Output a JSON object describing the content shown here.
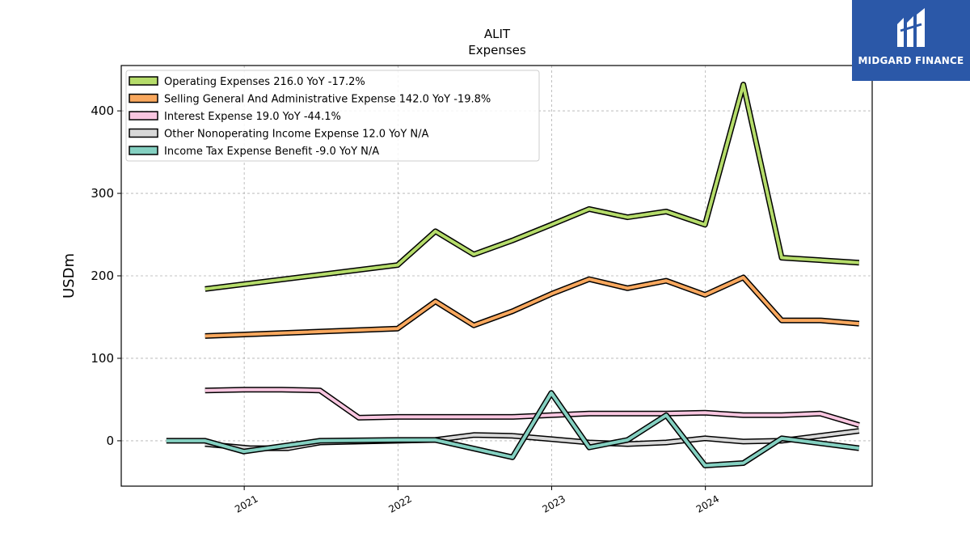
{
  "brand": {
    "name": "MIDGARD FINANCE",
    "color": "#2b58a8"
  },
  "chart_data": {
    "type": "line",
    "title": "ALIT",
    "subtitle": "Expenses",
    "ylabel": "USDm",
    "xlabel": "",
    "ylim": [
      -55,
      455
    ],
    "xlim": [
      "2020-03-15",
      "2025-01-31"
    ],
    "yticks": [
      0,
      100,
      200,
      300,
      400
    ],
    "xticks": [
      {
        "label": "2021",
        "date": "2021-01-01"
      },
      {
        "label": "2022",
        "date": "2022-01-01"
      },
      {
        "label": "2023",
        "date": "2023-01-01"
      },
      {
        "label": "2024",
        "date": "2024-01-01"
      }
    ],
    "grid": true,
    "legend_position": "top-left",
    "series": [
      {
        "name": "Operating Expenses",
        "legend": "Operating Expenses  216.0 YoY -17.2%",
        "color": "#b5dc6a",
        "points": [
          [
            "2020-09-30",
            184
          ],
          [
            "2021-12-31",
            213
          ],
          [
            "2022-03-31",
            254
          ],
          [
            "2022-06-30",
            226
          ],
          [
            "2022-09-30",
            243
          ],
          [
            "2022-12-31",
            262
          ],
          [
            "2023-03-31",
            281
          ],
          [
            "2023-06-30",
            271
          ],
          [
            "2023-09-30",
            278
          ],
          [
            "2023-12-31",
            262
          ],
          [
            "2024-03-31",
            432
          ],
          [
            "2024-06-30",
            222
          ],
          [
            "2024-12-31",
            216
          ]
        ]
      },
      {
        "name": "Selling General And Administrative Expense",
        "legend": "Selling General And Administrative Expense  142.0 YoY -19.8%",
        "color": "#f9a85e",
        "points": [
          [
            "2020-09-30",
            127
          ],
          [
            "2021-12-31",
            136
          ],
          [
            "2022-03-31",
            169
          ],
          [
            "2022-06-30",
            140
          ],
          [
            "2022-09-30",
            157
          ],
          [
            "2022-12-31",
            178
          ],
          [
            "2023-03-31",
            196
          ],
          [
            "2023-06-30",
            185
          ],
          [
            "2023-09-30",
            194
          ],
          [
            "2023-12-31",
            177
          ],
          [
            "2024-03-31",
            198
          ],
          [
            "2024-06-30",
            146
          ],
          [
            "2024-09-30",
            146
          ],
          [
            "2024-12-31",
            142
          ]
        ]
      },
      {
        "name": "Interest Expense",
        "legend": "Interest Expense  19.0 YoY -44.1%",
        "color": "#f9c6e0",
        "points": [
          [
            "2020-09-30",
            61
          ],
          [
            "2020-12-31",
            62
          ],
          [
            "2021-03-31",
            62
          ],
          [
            "2021-06-30",
            61
          ],
          [
            "2021-09-30",
            28
          ],
          [
            "2021-12-31",
            29
          ],
          [
            "2022-03-31",
            29
          ],
          [
            "2022-06-30",
            29
          ],
          [
            "2022-09-30",
            29
          ],
          [
            "2022-12-31",
            31
          ],
          [
            "2023-03-31",
            33
          ],
          [
            "2023-06-30",
            33
          ],
          [
            "2023-09-30",
            33
          ],
          [
            "2023-12-31",
            34
          ],
          [
            "2024-03-31",
            31
          ],
          [
            "2024-06-30",
            31
          ],
          [
            "2024-09-30",
            33
          ],
          [
            "2024-12-31",
            19
          ]
        ]
      },
      {
        "name": "Other Nonoperating Income Expense",
        "legend": "Other Nonoperating Income Expense  12.0 YoY N/A",
        "color": "#d8d8d8",
        "points": [
          [
            "2020-09-30",
            -4
          ],
          [
            "2021-01-15",
            -9
          ],
          [
            "2021-04-15",
            -9
          ],
          [
            "2021-06-30",
            -2
          ],
          [
            "2021-09-30",
            -1
          ],
          [
            "2021-12-31",
            0
          ],
          [
            "2022-03-31",
            1
          ],
          [
            "2022-06-30",
            7
          ],
          [
            "2022-09-30",
            6
          ],
          [
            "2022-12-31",
            2
          ],
          [
            "2023-03-31",
            -2
          ],
          [
            "2023-06-30",
            -4
          ],
          [
            "2023-09-30",
            -2
          ],
          [
            "2023-12-31",
            3
          ],
          [
            "2024-03-31",
            -1
          ],
          [
            "2024-06-30",
            0
          ],
          [
            "2024-12-31",
            12
          ]
        ]
      },
      {
        "name": "Income Tax Expense Benefit",
        "legend": "Income Tax Expense Benefit  -9.0 YoY N/A",
        "color": "#84d0c1",
        "points": [
          [
            "2020-06-30",
            0
          ],
          [
            "2020-09-30",
            0
          ],
          [
            "2020-12-31",
            -13
          ],
          [
            "2021-06-30",
            0
          ],
          [
            "2021-12-31",
            1
          ],
          [
            "2022-03-31",
            1
          ],
          [
            "2022-09-30",
            -20
          ],
          [
            "2022-12-31",
            58
          ],
          [
            "2023-03-31",
            -8
          ],
          [
            "2023-06-30",
            1
          ],
          [
            "2023-09-30",
            31
          ],
          [
            "2023-12-31",
            -30
          ],
          [
            "2024-03-31",
            -27
          ],
          [
            "2024-06-30",
            3
          ],
          [
            "2024-12-31",
            -9
          ]
        ]
      }
    ]
  }
}
